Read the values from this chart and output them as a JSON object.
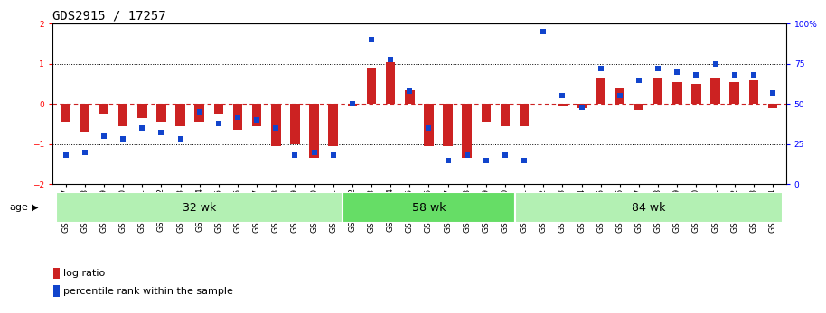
{
  "title": "GDS2915 / 17257",
  "samples": [
    "GSM97277",
    "GSM97278",
    "GSM97279",
    "GSM97280",
    "GSM97281",
    "GSM97282",
    "GSM97283",
    "GSM97284",
    "GSM97285",
    "GSM97286",
    "GSM97287",
    "GSM97288",
    "GSM97289",
    "GSM97290",
    "GSM97291",
    "GSM97292",
    "GSM97293",
    "GSM97294",
    "GSM97295",
    "GSM97296",
    "GSM97297",
    "GSM97298",
    "GSM97299",
    "GSM97300",
    "GSM97301",
    "GSM97302",
    "GSM97303",
    "GSM97304",
    "GSM97305",
    "GSM97306",
    "GSM97307",
    "GSM97308",
    "GSM97309",
    "GSM97310",
    "GSM97311",
    "GSM97312",
    "GSM97313",
    "GSM97314"
  ],
  "log_ratio": [
    -0.45,
    -0.7,
    -0.25,
    -0.55,
    -0.35,
    -0.45,
    -0.55,
    -0.45,
    -0.25,
    -0.65,
    -0.55,
    -1.05,
    -1.0,
    -1.35,
    -1.05,
    -0.05,
    0.9,
    1.05,
    0.35,
    -1.05,
    -1.05,
    -1.35,
    -0.45,
    -0.55,
    -0.55,
    0.0,
    -0.05,
    -0.1,
    0.65,
    0.4,
    -0.15,
    0.65,
    0.55,
    0.5,
    0.65,
    0.55,
    0.6,
    -0.1
  ],
  "percentile": [
    18,
    20,
    30,
    28,
    35,
    32,
    28,
    45,
    38,
    42,
    40,
    35,
    18,
    20,
    18,
    50,
    90,
    78,
    58,
    35,
    15,
    18,
    15,
    18,
    15,
    95,
    55,
    48,
    72,
    55,
    65,
    72,
    70,
    68,
    75,
    68,
    68,
    57
  ],
  "groups": [
    {
      "label": "32 wk",
      "start": 0,
      "end": 15,
      "color": "#b3f0b3"
    },
    {
      "label": "58 wk",
      "start": 15,
      "end": 24,
      "color": "#66dd66"
    },
    {
      "label": "84 wk",
      "start": 24,
      "end": 38,
      "color": "#b3f0b3"
    }
  ],
  "ylim_left": [
    -2,
    2
  ],
  "ylim_right": [
    0,
    100
  ],
  "yticks_left": [
    -2,
    -1,
    0,
    1,
    2
  ],
  "yticks_right": [
    0,
    25,
    50,
    75,
    100
  ],
  "yticklabels_right": [
    "0",
    "25",
    "50",
    "75",
    "100%"
  ],
  "bar_color": "#CC2222",
  "scatter_color": "#1144CC",
  "background_color": "#ffffff",
  "title_fontsize": 10,
  "tick_fontsize": 6.5,
  "group_label_fontsize": 9,
  "legend_fontsize": 8,
  "age_label": "age"
}
